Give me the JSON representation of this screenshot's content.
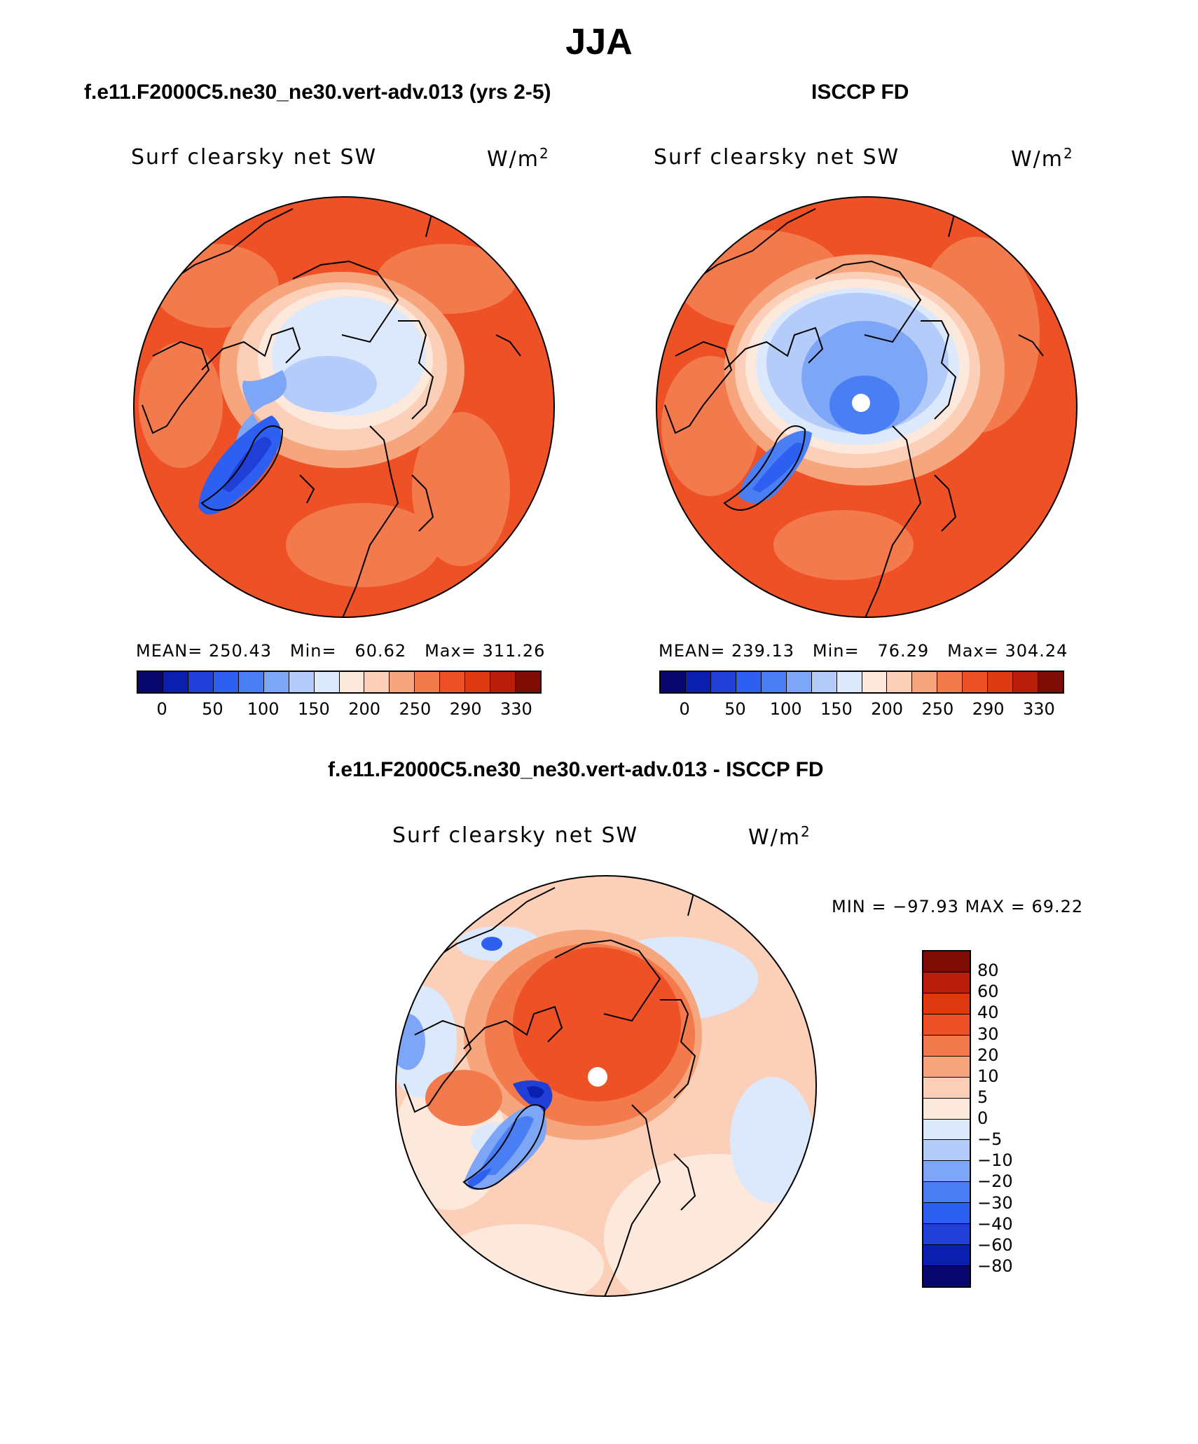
{
  "title": "JJA",
  "panels": [
    {
      "case_title": "f.e11.F2000C5.ne30_ne30.vert-adv.013 (yrs 2-5)",
      "variable": "Surf clearsky net SW",
      "units_base": "W/m",
      "units_exp": "2",
      "stats": {
        "mean_label": "MEAN=",
        "mean": "250.43",
        "min_label": "Min=",
        "min": "60.62",
        "max_label": "Max=",
        "max": "311.26"
      }
    },
    {
      "case_title": "ISCCP FD",
      "variable": "Surf clearsky net SW",
      "units_base": "W/m",
      "units_exp": "2",
      "stats": {
        "mean_label": "MEAN=",
        "mean": "239.13",
        "min_label": "Min=",
        "min": "76.29",
        "max_label": "Max=",
        "max": "304.24"
      }
    }
  ],
  "colorbar": {
    "colors": [
      "#08086e",
      "#0b1fae",
      "#1f3fd6",
      "#2d5ff0",
      "#4a7ef5",
      "#7ea6f7",
      "#b3ccf9",
      "#dce8fb",
      "#fde8dc",
      "#fcd0b8",
      "#f7a57c",
      "#f37a4d",
      "#ee5125",
      "#de3a12",
      "#b81e09",
      "#7d0c04"
    ],
    "labels": [
      "0",
      "50",
      "100",
      "150",
      "200",
      "250",
      "290",
      "330"
    ]
  },
  "diff": {
    "case_title": "f.e11.F2000C5.ne30_ne30.vert-adv.013 - ISCCP FD",
    "variable": "Surf clearsky net SW",
    "units_base": "W/m",
    "units_exp": "2",
    "minmax": "MIN = −97.93 MAX =   69.22",
    "colorbar": {
      "colors": [
        "#7d0c04",
        "#b81e09",
        "#de3a12",
        "#ee5125",
        "#f37a4d",
        "#f7a57c",
        "#fcd0b8",
        "#fde8dc",
        "#dce8fb",
        "#b3ccf9",
        "#7ea6f7",
        "#4a7ef5",
        "#2d5ff0",
        "#1f3fd6",
        "#0b1fae",
        "#08086e"
      ],
      "labels": [
        "80",
        "60",
        "40",
        "30",
        "20",
        "10",
        "5",
        "0",
        "−5",
        "−10",
        "−20",
        "−30",
        "−40",
        "−60",
        "−80"
      ]
    }
  },
  "map_colors": {
    "warm_base": "#ee5125",
    "model_land_orange": "#f37a4d",
    "obs_land_orange": "#f7a57c",
    "diff_base": "#fcd0b8",
    "diff_light": "#fde8dc",
    "diff_center": "#ee5125",
    "ice_light": "#dce8fb",
    "ice_mid": "#b3ccf9",
    "ice_blue": "#7ea6f7",
    "greenland_blue": "#2d5ff0",
    "greenland_dark": "#1f3fd6",
    "coastline": "#000000",
    "missing": "#ffffff"
  }
}
